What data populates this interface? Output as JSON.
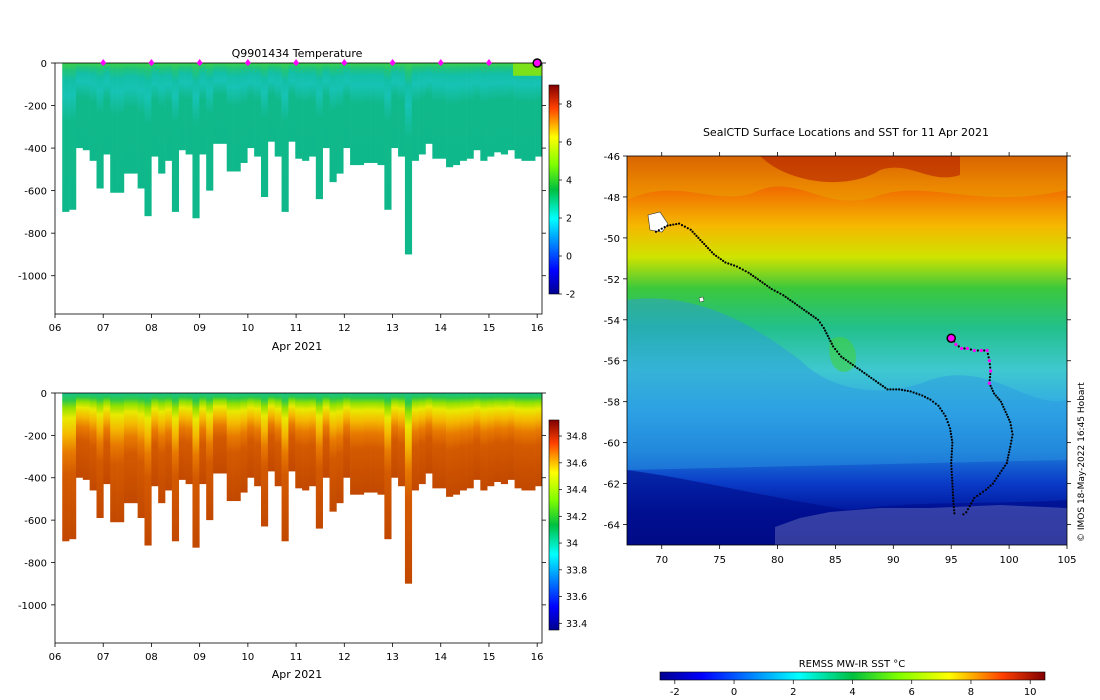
{
  "chart_data": [
    {
      "type": "heatmap",
      "id": "temperature-section",
      "title": "Q9901434  Temperature",
      "xlabel": "Apr 2021",
      "ylabel": "",
      "x_ticks": [
        "06",
        "07",
        "08",
        "09",
        "10",
        "11",
        "12",
        "13",
        "14",
        "15",
        "16"
      ],
      "x_range": [
        6,
        16.1
      ],
      "y_ticks": [
        0,
        -200,
        -400,
        -600,
        -800,
        -1000
      ],
      "y_range": [
        -1180,
        0
      ],
      "colorbar": {
        "min": -2,
        "max": 9,
        "ticks": [
          8,
          6,
          4,
          2,
          0,
          -2
        ]
      },
      "profile_markers_days": [
        7,
        8,
        9,
        10,
        11,
        12,
        13,
        14,
        15
      ],
      "current_profile_day": 16,
      "profile_max_depths_m": [
        700,
        690,
        400,
        410,
        460,
        590,
        430,
        610,
        610,
        520,
        520,
        590,
        720,
        440,
        520,
        460,
        700,
        410,
        430,
        730,
        430,
        600,
        380,
        380,
        510,
        510,
        470,
        400,
        440,
        630,
        370,
        440,
        700,
        370,
        450,
        460,
        440,
        640,
        400,
        560,
        520,
        400,
        480,
        480,
        470,
        470,
        480,
        690,
        400,
        440,
        900,
        460,
        430,
        380,
        450,
        450,
        490,
        480,
        460,
        450,
        410,
        460,
        440,
        420,
        430,
        410,
        450,
        460,
        460,
        440
      ]
    },
    {
      "type": "heatmap",
      "id": "salinity-section",
      "title": "",
      "xlabel": "Apr 2021",
      "ylabel": "",
      "x_ticks": [
        "06",
        "07",
        "08",
        "09",
        "10",
        "11",
        "12",
        "13",
        "14",
        "15",
        "16"
      ],
      "x_range": [
        6,
        16.1
      ],
      "y_ticks": [
        0,
        -200,
        -400,
        -600,
        -800,
        -1000
      ],
      "y_range": [
        -1180,
        0
      ],
      "colorbar": {
        "min": 33.35,
        "max": 34.92,
        "ticks": [
          34.8,
          34.6,
          34.4,
          34.2,
          34,
          33.8,
          33.6,
          33.4
        ]
      }
    },
    {
      "type": "heatmap",
      "id": "sst-map",
      "title": "SealCTD Surface Locations and SST for 11 Apr 2021",
      "xlabel": "",
      "ylabel": "",
      "x_ticks": [
        70,
        75,
        80,
        85,
        90,
        95,
        100,
        105
      ],
      "x_range": [
        67,
        105
      ],
      "y_ticks": [
        -46,
        -48,
        -50,
        -52,
        -54,
        -56,
        -58,
        -60,
        -62,
        -64
      ],
      "y_range": [
        -65,
        -46
      ],
      "colorbar": {
        "label": "REMSS MW-IR SST °C",
        "min": -2.5,
        "max": 10.5,
        "ticks": [
          -2,
          0,
          2,
          4,
          6,
          8,
          10
        ]
      },
      "track_lon": [
        69.5,
        70.5,
        71.5,
        72.5,
        73.5,
        74.5,
        75.5,
        76.5,
        77.5,
        78.5,
        79.5,
        80.5,
        81.5,
        82.5,
        83.5,
        84,
        84.8,
        85.5,
        86.5,
        87.5,
        88.5,
        89.5,
        90.5,
        91.5,
        92.5,
        93.2,
        93.9,
        94.5,
        94.9,
        95.1,
        95.0,
        95.1,
        95.2,
        95.3
      ],
      "track_lat": [
        -49.7,
        -49.4,
        -49.3,
        -49.6,
        -50.2,
        -50.8,
        -51.2,
        -51.4,
        -51.7,
        -52.1,
        -52.5,
        -52.8,
        -53.2,
        -53.6,
        -54.0,
        -54.4,
        -55.3,
        -55.8,
        -56.2,
        -56.6,
        -57.0,
        -57.4,
        -57.4,
        -57.5,
        -57.7,
        -57.9,
        -58.2,
        -58.7,
        -59.3,
        -60.0,
        -61.0,
        -62.0,
        -63.0,
        -63.6
      ],
      "recent_lon": [
        95.1,
        95.4,
        95.9,
        96.4,
        97.0,
        97.6,
        98.1,
        98.3,
        98.4,
        98.3,
        98.7,
        99.3,
        99.7,
        100.1,
        100.3,
        100.1,
        99.8,
        99.2,
        98.6,
        98.0,
        97.5,
        97.0,
        96.6,
        96.3,
        95.8
      ],
      "recent_lat": [
        -54.9,
        -55.2,
        -55.4,
        -55.4,
        -55.5,
        -55.5,
        -55.5,
        -56.0,
        -56.5,
        -57.1,
        -57.6,
        -58.0,
        -58.5,
        -59.0,
        -59.6,
        -60.2,
        -61.0,
        -61.5,
        -62.0,
        -62.3,
        -62.5,
        -62.7,
        -63.1,
        -63.4,
        -63.6
      ],
      "current_position": {
        "lon": 95.0,
        "lat": -54.9
      }
    }
  ],
  "credit": "© IMOS 18-May-2022 16:45 Hobart",
  "colors": {
    "frame": "#000000",
    "marker": "#ff00ff"
  }
}
